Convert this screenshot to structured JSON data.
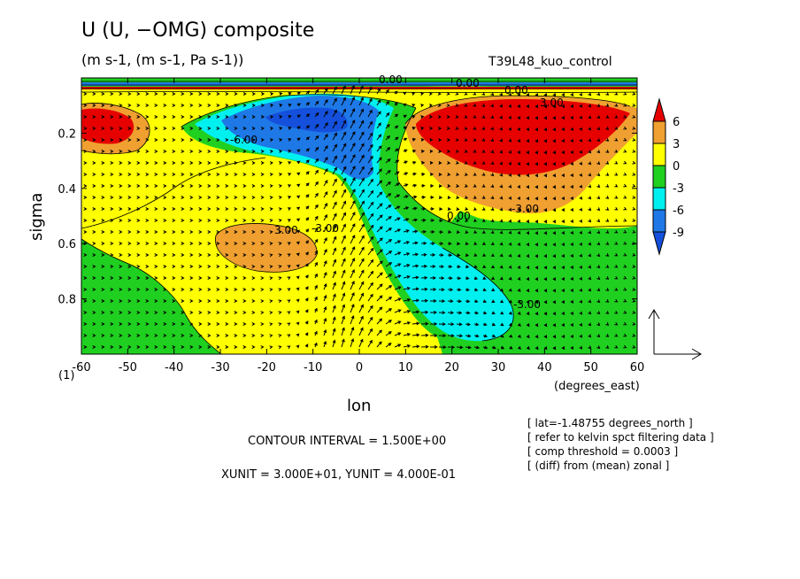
{
  "header": {
    "title": "U (U, −OMG) composite",
    "units": "(m s-1, (m s-1, Pa s-1))",
    "run_label": "T39L48_kuo_control"
  },
  "footer": {
    "panel_label": "(1)",
    "x_unit_label": "(degrees_east)",
    "contour_interval": "CONTOUR INTERVAL = 1.500E+00",
    "vector_units": "XUNIT = 3.000E+01, YUNIT = 4.000E-01",
    "notes": [
      "[ lat=-1.48755 degrees_north ]",
      "[ refer to kelvin spct filtering data ]",
      "[ comp threshold = 0.0003 ]",
      "[ (diff) from (mean) zonal ]"
    ]
  },
  "chart_data": {
    "type": "heatmap",
    "title": "U (U, −OMG) composite",
    "xlabel": "lon",
    "ylabel": "sigma",
    "xlim": [
      -60,
      60
    ],
    "ylim": [
      1.0,
      0.0
    ],
    "xticks": [
      -60,
      -50,
      -40,
      -30,
      -20,
      -10,
      0,
      10,
      20,
      30,
      40,
      50,
      60
    ],
    "yticks": [
      0.2,
      0.4,
      0.6,
      0.8
    ],
    "colorbar": {
      "levels": [
        6,
        3,
        0,
        -3,
        -6,
        -9
      ],
      "colors": {
        "above_6": "#e60000",
        "3_to_6": "#f0a030",
        "0_to_3": "#ffff00",
        "-3_to_0": "#20d020",
        "-6_to_-3": "#00f0f0",
        "-9_to_-6": "#1e78e6",
        "below_-9": "#1450dc"
      }
    },
    "contour_labels": [
      "0.00",
      "3.00",
      "-3.00",
      "-6.00",
      "0.00",
      "0.00",
      "3.00",
      "-3.00",
      "0.00",
      "-3.00"
    ],
    "contour_interval": 1.5,
    "vector_reference": {
      "xunit": 30.0,
      "yunit": 0.4
    },
    "grid": false,
    "legend": "right"
  }
}
